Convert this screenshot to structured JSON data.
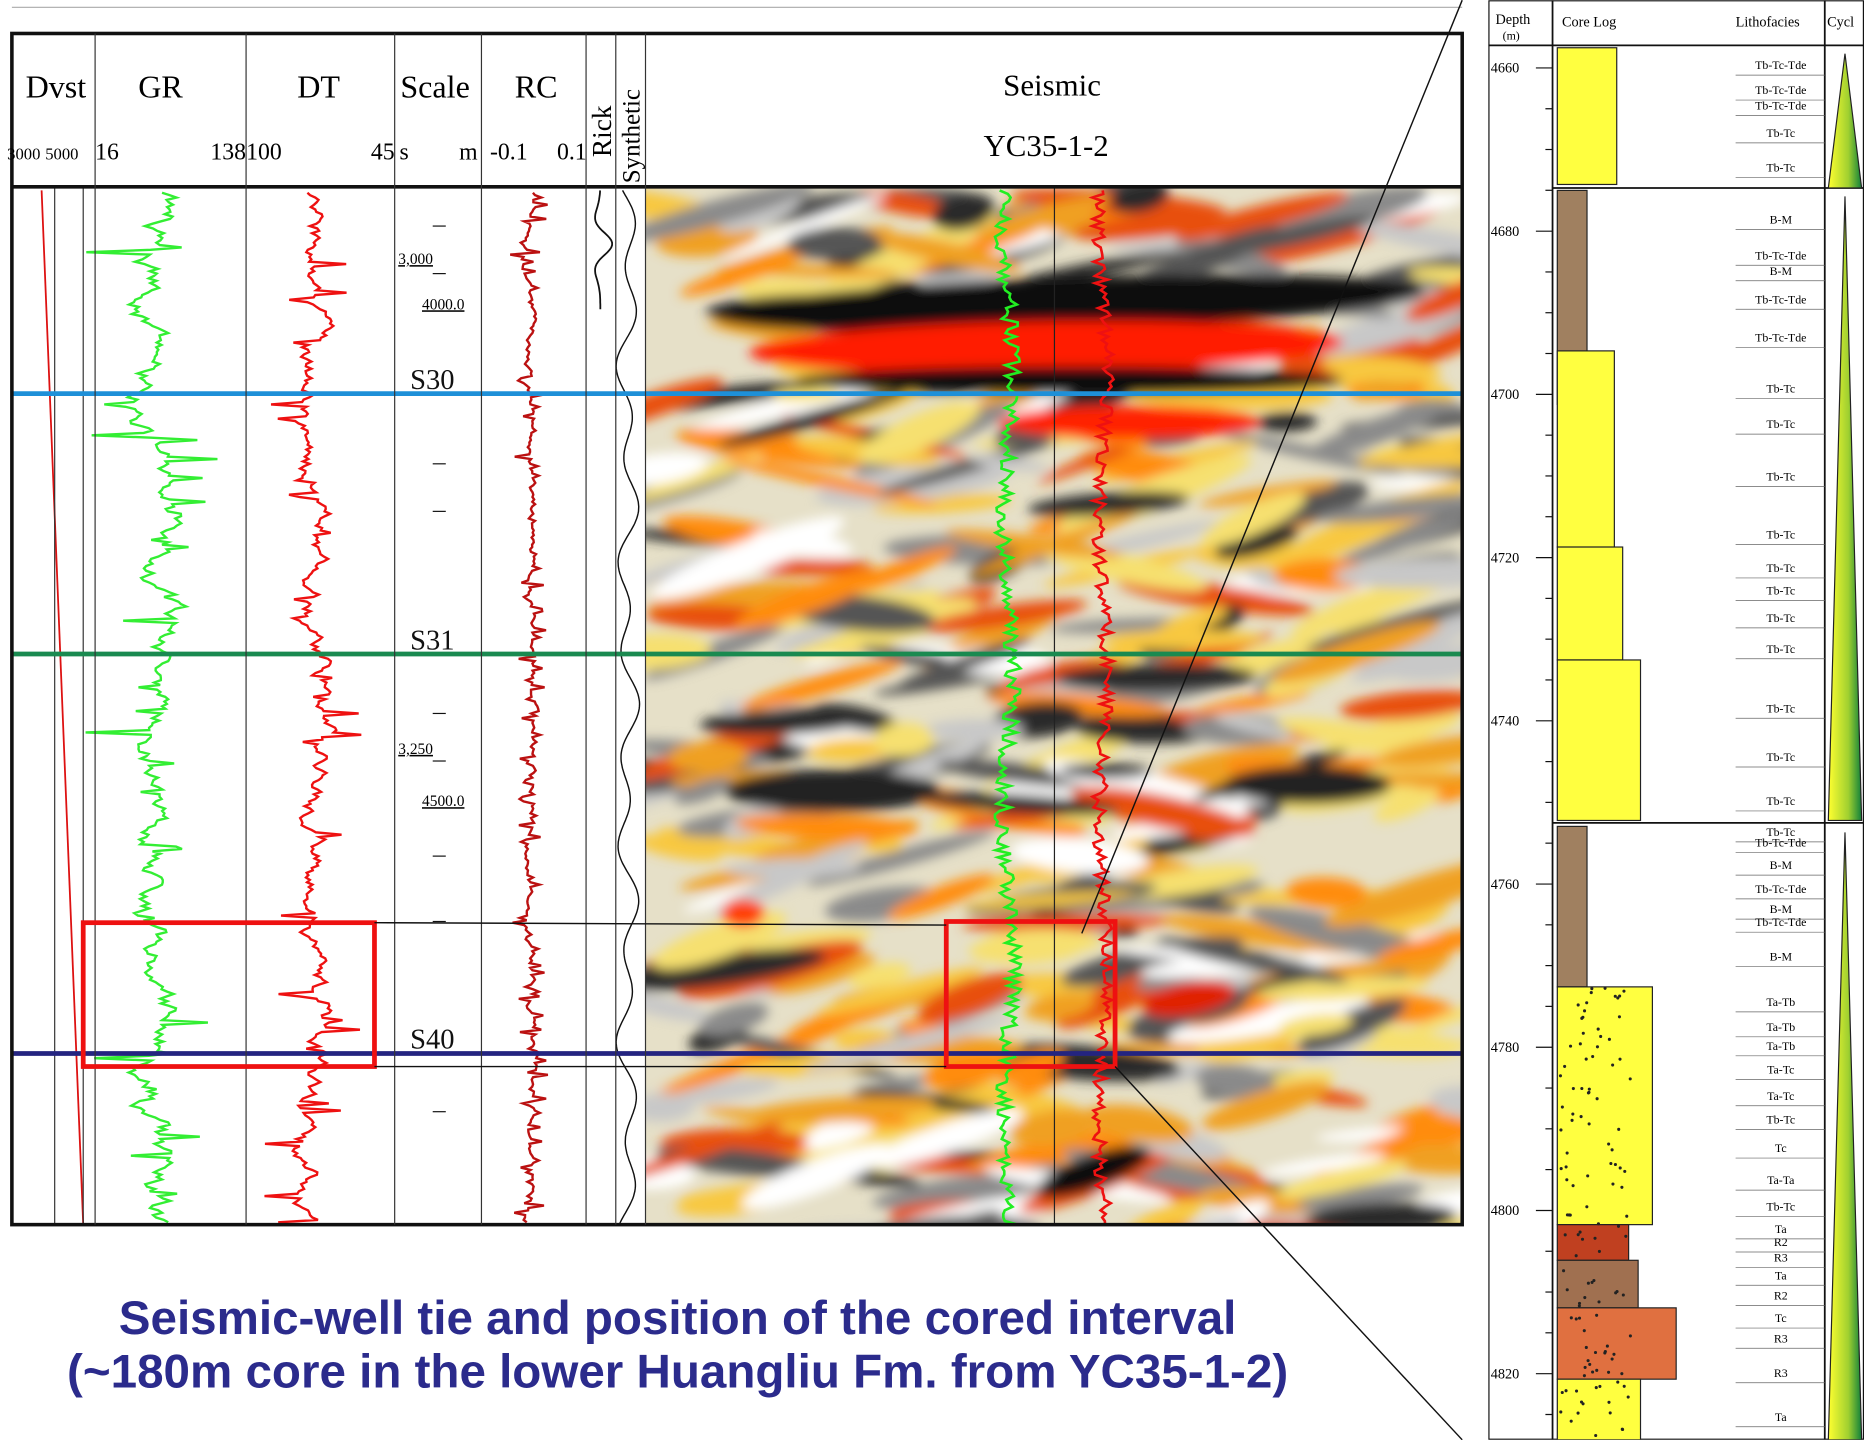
{
  "well_tie": {
    "tracks": [
      {
        "name": "Dvst",
        "min": "3000",
        "max": "5000"
      },
      {
        "name": "GR",
        "min": "16",
        "max": "138"
      },
      {
        "name": "DT",
        "min": "100",
        "max": "45"
      },
      {
        "name": "Scale",
        "min": "s",
        "max": "m"
      },
      {
        "name": "RC",
        "min": "-0.1",
        "max": "0.1"
      }
    ],
    "rick": "Rick",
    "synthetic": "Synthetic",
    "seismic": "Seismic",
    "well": "YC35-1-2",
    "scale_labels": [
      "3,000",
      "4000.0",
      "3,250",
      "4500.0"
    ],
    "horizons": [
      "S30",
      "S31",
      "S40"
    ]
  },
  "caption": [
    "Seismic-well tie and position of the cored interval",
    "(~180m core in the lower Huangliu Fm. from YC35-1-2)"
  ],
  "core_log": {
    "headers": {
      "depth": "Depth",
      "depth_unit": "(m)",
      "core_log": "Core Log",
      "lithofacies": "Lithofacies",
      "cycle": "Cycl"
    },
    "depths": [
      "4660",
      "4680",
      "4700",
      "4720",
      "4740",
      "4760",
      "4780",
      "4800",
      "4820"
    ],
    "lithofacies": [
      "Tb-Tc-Tde",
      "Tb-Tc-Tde",
      "Tb-Tc-Tde",
      "Tb-Tc",
      "Tb-Tc",
      "B-M",
      "Tb-Tc-Tde",
      "B-M",
      "Tb-Tc-Tde",
      "Tb-Tc-Tde",
      "Tb-Tc",
      "Tb-Tc",
      "Tb-Tc",
      "Tb-Tc",
      "Tb-Tc",
      "Tb-Tc",
      "Tb-Tc",
      "Tb-Tc",
      "Tb-Tc",
      "Tb-Tc",
      "Tb-Tc",
      "Tb-Tc",
      "Tb-Tc-Tde",
      "B-M",
      "Tb-Tc-Tde",
      "B-M",
      "Tb-Tc-Tde",
      "B-M",
      "Ta-Tb",
      "Ta-Tb",
      "Ta-Tb",
      "Ta-Tc",
      "Ta-Tc",
      "Tb-Tc",
      "Tc",
      "Ta-Ta",
      "Tb-Tc",
      "Ta",
      "R2",
      "R3",
      "Ta",
      "R2",
      "Tc",
      "R3",
      "R3",
      "Ta"
    ]
  }
}
